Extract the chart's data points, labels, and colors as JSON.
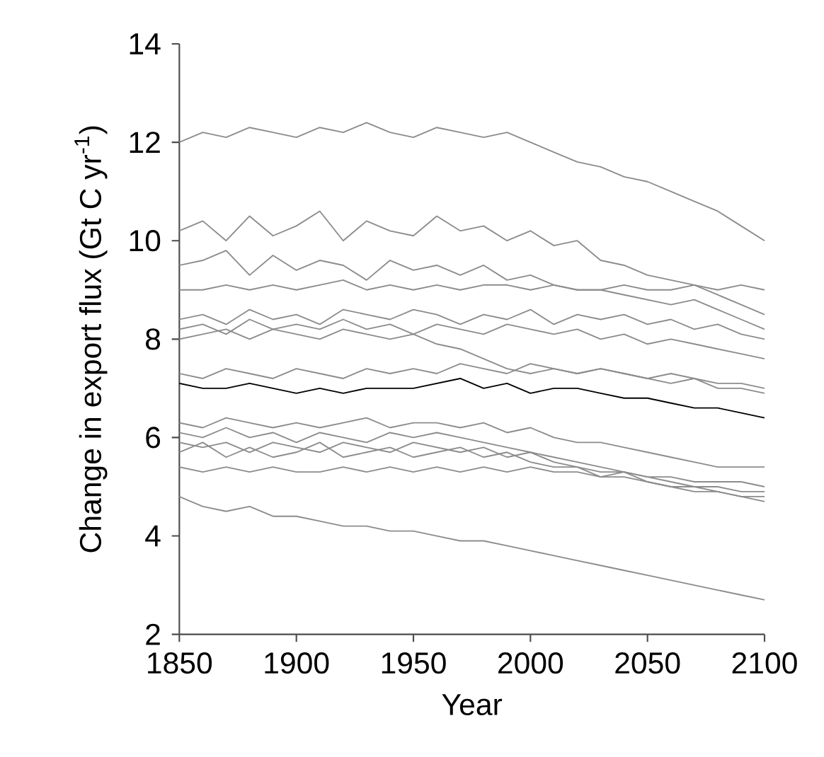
{
  "chart_data": {
    "type": "line",
    "xlabel": "Year",
    "ylabel": "Change in export flux (Gt C yr$^{-1}$)",
    "x": [
      1850,
      1860,
      1870,
      1880,
      1890,
      1900,
      1910,
      1920,
      1930,
      1940,
      1950,
      1960,
      1970,
      1980,
      1990,
      2000,
      2010,
      2020,
      2030,
      2040,
      2050,
      2060,
      2070,
      2080,
      2090,
      2100
    ],
    "xlim": [
      1850,
      2100
    ],
    "xticks": [
      1850,
      1900,
      1950,
      2000,
      2050,
      2100
    ],
    "ylim": [
      2,
      14
    ],
    "yticks": [
      2,
      4,
      6,
      8,
      10,
      12,
      14
    ],
    "grid": false,
    "marker": "none",
    "line_style": "solid",
    "series": [
      {
        "color": "#8c8c8c",
        "values": [
          12.0,
          12.2,
          12.1,
          12.3,
          12.2,
          12.1,
          12.3,
          12.2,
          12.4,
          12.2,
          12.1,
          12.3,
          12.2,
          12.1,
          12.2,
          12.0,
          11.8,
          11.6,
          11.5,
          11.3,
          11.2,
          11.0,
          10.8,
          10.6,
          10.3,
          10.0
        ]
      },
      {
        "color": "#8c8c8c",
        "values": [
          10.2,
          10.4,
          10.0,
          10.5,
          10.1,
          10.3,
          10.6,
          10.0,
          10.4,
          10.2,
          10.1,
          10.5,
          10.2,
          10.3,
          10.0,
          10.2,
          9.9,
          10.0,
          9.6,
          9.5,
          9.3,
          9.2,
          9.1,
          8.9,
          8.7,
          8.5
        ]
      },
      {
        "color": "#8c8c8c",
        "values": [
          9.5,
          9.6,
          9.8,
          9.3,
          9.7,
          9.4,
          9.6,
          9.5,
          9.2,
          9.6,
          9.4,
          9.5,
          9.3,
          9.5,
          9.2,
          9.3,
          9.1,
          9.0,
          9.0,
          8.9,
          8.8,
          8.7,
          8.8,
          8.6,
          8.4,
          8.2
        ]
      },
      {
        "color": "#8c8c8c",
        "values": [
          9.0,
          9.0,
          9.1,
          9.0,
          9.1,
          9.0,
          9.1,
          9.2,
          9.0,
          9.1,
          9.0,
          9.1,
          9.0,
          9.1,
          9.1,
          9.0,
          9.1,
          9.0,
          9.0,
          9.1,
          9.0,
          9.0,
          9.1,
          9.0,
          9.1,
          9.0
        ]
      },
      {
        "color": "#8c8c8c",
        "values": [
          8.4,
          8.5,
          8.3,
          8.6,
          8.4,
          8.5,
          8.3,
          8.6,
          8.5,
          8.4,
          8.6,
          8.5,
          8.3,
          8.5,
          8.4,
          8.6,
          8.3,
          8.5,
          8.4,
          8.5,
          8.3,
          8.4,
          8.2,
          8.3,
          8.1,
          8.0
        ]
      },
      {
        "color": "#8c8c8c",
        "values": [
          8.2,
          8.3,
          8.1,
          8.4,
          8.2,
          8.3,
          8.2,
          8.4,
          8.2,
          8.3,
          8.1,
          8.3,
          8.2,
          8.1,
          8.3,
          8.2,
          8.1,
          8.2,
          8.0,
          8.1,
          7.9,
          8.0,
          7.9,
          7.8,
          7.7,
          7.6
        ]
      },
      {
        "color": "#8c8c8c",
        "values": [
          8.0,
          8.1,
          8.2,
          8.0,
          8.2,
          8.1,
          8.0,
          8.2,
          8.1,
          8.0,
          8.1,
          7.9,
          7.8,
          7.6,
          7.4,
          7.3,
          7.4,
          7.3,
          7.4,
          7.3,
          7.2,
          7.3,
          7.2,
          7.1,
          7.1,
          7.0
        ]
      },
      {
        "color": "#8c8c8c",
        "values": [
          7.3,
          7.2,
          7.4,
          7.3,
          7.2,
          7.4,
          7.3,
          7.2,
          7.4,
          7.3,
          7.4,
          7.3,
          7.5,
          7.4,
          7.3,
          7.5,
          7.4,
          7.3,
          7.4,
          7.3,
          7.2,
          7.1,
          7.2,
          7.0,
          7.0,
          6.9
        ]
      },
      {
        "color": "#8c8c8c",
        "values": [
          6.3,
          6.2,
          6.4,
          6.3,
          6.2,
          6.3,
          6.2,
          6.3,
          6.4,
          6.2,
          6.3,
          6.3,
          6.2,
          6.3,
          6.1,
          6.2,
          6.0,
          5.9,
          5.9,
          5.8,
          5.7,
          5.6,
          5.5,
          5.4,
          5.4,
          5.4
        ]
      },
      {
        "color": "#8c8c8c",
        "values": [
          6.1,
          6.0,
          6.2,
          6.0,
          6.1,
          5.9,
          6.1,
          6.0,
          5.9,
          6.1,
          6.0,
          6.1,
          6.0,
          5.9,
          5.8,
          5.7,
          5.6,
          5.5,
          5.4,
          5.3,
          5.2,
          5.1,
          5.0,
          5.0,
          4.9,
          4.9
        ]
      },
      {
        "color": "#8c8c8c",
        "values": [
          5.9,
          5.8,
          5.9,
          5.7,
          5.9,
          5.8,
          5.7,
          5.9,
          5.8,
          5.7,
          5.9,
          5.8,
          5.7,
          5.8,
          5.6,
          5.7,
          5.5,
          5.4,
          5.3,
          5.3,
          5.1,
          5.0,
          5.0,
          4.9,
          4.8,
          4.8
        ]
      },
      {
        "color": "#8c8c8c",
        "values": [
          5.7,
          5.9,
          5.6,
          5.8,
          5.6,
          5.7,
          5.9,
          5.6,
          5.7,
          5.8,
          5.6,
          5.7,
          5.8,
          5.6,
          5.7,
          5.5,
          5.4,
          5.4,
          5.2,
          5.2,
          5.1,
          5.0,
          4.9,
          4.9,
          4.8,
          4.7
        ]
      },
      {
        "color": "#8c8c8c",
        "values": [
          5.4,
          5.3,
          5.4,
          5.3,
          5.4,
          5.3,
          5.3,
          5.4,
          5.3,
          5.4,
          5.3,
          5.4,
          5.3,
          5.4,
          5.3,
          5.4,
          5.3,
          5.3,
          5.2,
          5.3,
          5.2,
          5.2,
          5.1,
          5.1,
          5.1,
          5.0
        ]
      },
      {
        "color": "#8c8c8c",
        "values": [
          4.8,
          4.6,
          4.5,
          4.6,
          4.4,
          4.4,
          4.3,
          4.2,
          4.2,
          4.1,
          4.1,
          4.0,
          3.9,
          3.9,
          3.8,
          3.7,
          3.6,
          3.5,
          3.4,
          3.3,
          3.2,
          3.1,
          3.0,
          2.9,
          2.8,
          2.7
        ]
      },
      {
        "color": "#000000",
        "values": [
          7.1,
          7.0,
          7.0,
          7.1,
          7.0,
          6.9,
          7.0,
          6.9,
          7.0,
          7.0,
          7.0,
          7.1,
          7.2,
          7.0,
          7.1,
          6.9,
          7.0,
          7.0,
          6.9,
          6.8,
          6.8,
          6.7,
          6.6,
          6.6,
          6.5,
          6.4
        ]
      }
    ]
  }
}
